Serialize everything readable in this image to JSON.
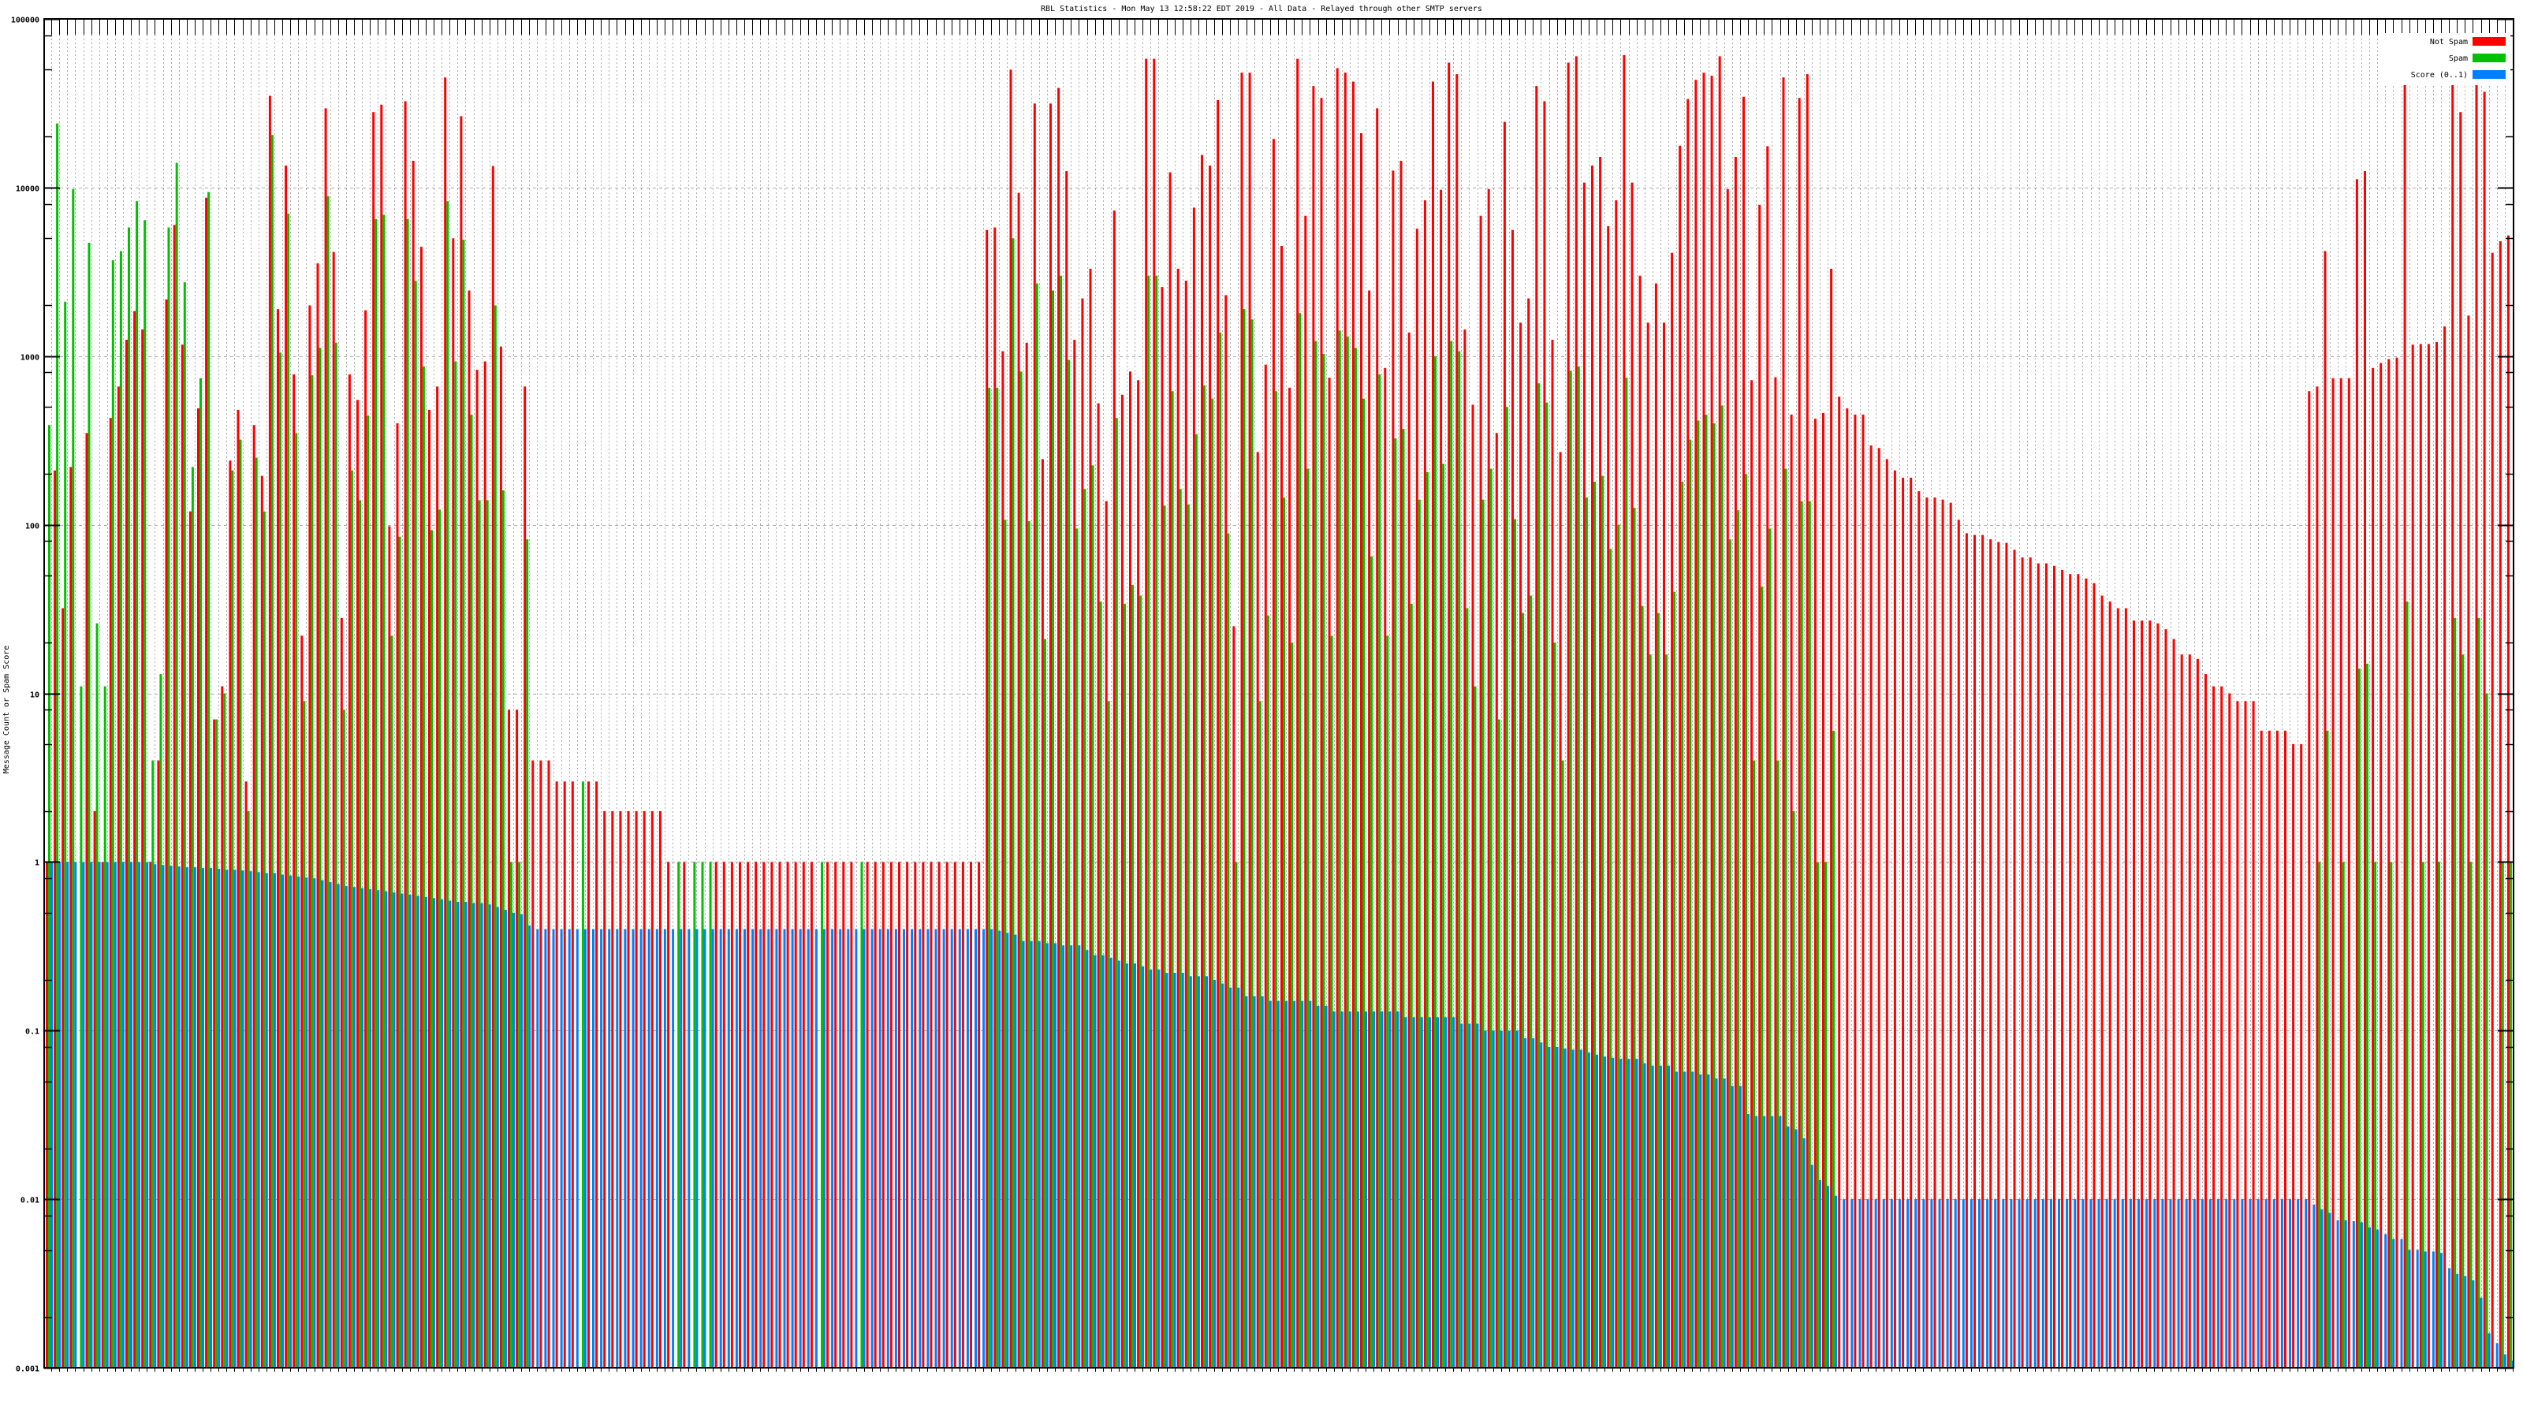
{
  "chart_data": {
    "type": "bar",
    "title": "RBL Statistics - Mon May 13 12:58:22 EDT 2019 - All Data - Relayed through other SMTP servers",
    "xlabel": "",
    "ylabel": "Message Count or Spam Score",
    "yscale": "log",
    "ylim": [
      0.001,
      100000
    ],
    "yticks": [
      "100000",
      "10000",
      "1000",
      "100",
      "10",
      "1",
      "0.1",
      "0.01",
      "0.001"
    ],
    "grid": true,
    "legend_position": "top-right",
    "colors": {
      "not_spam": "#ff0000",
      "spam": "#00c000",
      "score": "#0080ff"
    },
    "series": [
      {
        "name": "Not Spam",
        "key": "not_spam",
        "values": [
          1,
          210,
          32,
          220,
          0,
          350,
          2,
          1,
          430,
          660,
          1250,
          1850,
          1440,
          1,
          4,
          2170,
          6000,
          1170,
          120,
          490,
          8700,
          7,
          11,
          240,
          480,
          3,
          390,
          195,
          35000,
          1900,
          13500,
          780,
          22,
          2000,
          3550,
          29500,
          4150,
          28,
          780,
          550,
          1870,
          28000,
          31000,
          98,
          400,
          32500,
          14400,
          4450,
          480,
          660,
          45000,
          5000,
          26500,
          2450,
          830,
          930,
          13400,
          1140,
          8,
          8,
          660,
          4,
          4,
          4,
          3,
          3,
          3,
          0,
          3,
          3,
          2,
          2,
          2,
          2,
          2,
          2,
          2,
          2,
          1,
          0,
          1,
          0,
          0,
          0,
          1,
          1,
          1,
          1,
          1,
          1,
          1,
          1,
          1,
          1,
          1,
          1,
          1,
          0,
          1,
          1,
          1,
          1,
          0,
          1,
          1,
          1,
          1,
          1,
          1,
          1,
          1,
          1,
          1,
          1,
          1,
          1,
          1,
          1,
          5600,
          5800,
          1070,
          50000,
          9300,
          1200,
          31500,
          245,
          31500,
          39000,
          12500,
          1250,
          2200,
          3300,
          525,
          138,
          7300,
          590,
          810,
          720,
          58000,
          58000,
          2570,
          12300,
          3300,
          2800,
          7600,
          15600,
          13500,
          33000,
          2300,
          25,
          48000,
          48000,
          270,
          890,
          19400,
          4500,
          650,
          58000,
          6800,
          40000,
          34000,
          745,
          51000,
          48000,
          42500,
          21000,
          2450,
          29500,
          850,
          12600,
          14400,
          1380,
          5700,
          8400,
          42500,
          9700,
          55000,
          47000,
          1440,
          515,
          6800,
          9800,
          350,
          24500,
          5600,
          1580,
          2200,
          40000,
          32500,
          1250,
          270,
          55000,
          60000,
          10700,
          13500,
          15200,
          5900,
          8400,
          61000,
          10700,
          3000,
          1580,
          2700,
          1580,
          4100,
          17700,
          33500,
          43500,
          48000,
          46000,
          60000,
          9800,
          15200,
          34500,
          720,
          7900,
          17600,
          750,
          45000,
          450,
          34000,
          47000,
          425,
          460,
          3300,
          575,
          490,
          450,
          450,
          295,
          285,
          245,
          210,
          190,
          190,
          158,
          145,
          145,
          141,
          135,
          107,
          89,
          87,
          87,
          82,
          79,
          78,
          71,
          64,
          64,
          59,
          59,
          57,
          54,
          51,
          51,
          48,
          45,
          38,
          35,
          32,
          32,
          27,
          27,
          27,
          26,
          24,
          21,
          17,
          17,
          16,
          13,
          11,
          11,
          10,
          9,
          9,
          9,
          6,
          6,
          6,
          6,
          5,
          5,
          620,
          660,
          4200,
          740,
          740,
          740,
          11200,
          12500,
          850,
          910,
          960,
          980,
          41000,
          1170,
          1180,
          1180,
          1210,
          1500,
          44000,
          28000,
          1740,
          62000,
          37000,
          4100,
          4800,
          5200
        ]
      },
      {
        "name": "Spam",
        "key": "spam",
        "values": [
          390,
          24000,
          2100,
          9800,
          11,
          4700,
          26,
          11,
          3700,
          4200,
          5800,
          8300,
          6400,
          4,
          13,
          5800,
          14000,
          2740,
          220,
          740,
          9400,
          7,
          10,
          210,
          320,
          2,
          250,
          120,
          20500,
          1050,
          7000,
          350,
          9,
          770,
          1120,
          8900,
          1200,
          8,
          210,
          140,
          445,
          6500,
          6900,
          22,
          85,
          6500,
          2800,
          870,
          93,
          123,
          8300,
          930,
          4900,
          450,
          140,
          140,
          2000,
          160,
          1,
          1,
          82,
          0,
          0,
          0,
          0,
          0,
          0,
          3,
          0,
          0,
          0,
          0,
          0,
          0,
          0,
          0,
          0,
          0,
          0,
          1,
          0,
          1,
          1,
          1,
          0,
          0,
          0,
          0,
          0,
          0,
          0,
          0,
          0,
          0,
          0,
          0,
          0,
          1,
          0,
          0,
          0,
          0,
          1,
          0,
          0,
          0,
          0,
          0,
          0,
          0,
          0,
          0,
          0,
          0,
          0,
          0,
          0,
          0,
          650,
          650,
          107,
          5000,
          810,
          105,
          2700,
          21,
          2450,
          3000,
          950,
          95,
          163,
          225,
          35,
          9,
          430,
          34,
          44,
          38,
          3000,
          3000,
          130,
          620,
          163,
          132,
          345,
          670,
          560,
          1380,
          89,
          1,
          1900,
          1650,
          9,
          29,
          620,
          145,
          20,
          1800,
          215,
          1230,
          1030,
          22,
          1420,
          1310,
          1120,
          560,
          65,
          780,
          22,
          325,
          370,
          34,
          141,
          205,
          1000,
          230,
          1230,
          1070,
          32,
          11,
          141,
          215,
          7,
          500,
          108,
          30,
          38,
          690,
          530,
          20,
          4,
          820,
          870,
          145,
          180,
          195,
          72,
          100,
          745,
          126,
          33,
          17,
          30,
          17,
          40,
          180,
          320,
          415,
          450,
          400,
          510,
          82,
          122,
          200,
          4,
          43,
          95,
          4,
          215,
          2,
          138,
          138,
          1,
          1,
          6,
          0,
          0,
          0,
          0,
          0,
          0,
          0,
          0,
          0,
          0,
          0,
          0,
          0,
          0,
          0,
          0,
          0,
          0,
          0,
          0,
          0,
          0,
          0,
          0,
          0,
          0,
          0,
          0,
          0,
          0,
          0,
          0,
          0,
          0,
          0,
          0,
          0,
          0,
          0,
          0,
          0,
          0,
          0,
          0,
          0,
          0,
          0,
          0,
          0,
          0,
          0,
          0,
          0,
          0,
          0,
          0,
          0,
          0,
          0,
          0,
          1,
          6,
          0,
          1,
          0,
          14,
          15,
          1,
          0,
          1,
          0,
          35,
          0,
          1,
          0,
          1,
          0,
          28,
          17,
          1,
          28,
          10,
          0,
          1,
          1
        ]
      },
      {
        "name": "Score (0..1)",
        "key": "score",
        "values": [
          1,
          1,
          1,
          1,
          1,
          1,
          1,
          1,
          1,
          1,
          1,
          1,
          1,
          0.97,
          0.96,
          0.95,
          0.94,
          0.93,
          0.93,
          0.92,
          0.92,
          0.91,
          0.9,
          0.9,
          0.89,
          0.88,
          0.87,
          0.86,
          0.86,
          0.84,
          0.83,
          0.82,
          0.81,
          0.8,
          0.78,
          0.76,
          0.74,
          0.72,
          0.71,
          0.7,
          0.69,
          0.68,
          0.67,
          0.66,
          0.65,
          0.64,
          0.63,
          0.62,
          0.61,
          0.6,
          0.59,
          0.58,
          0.58,
          0.57,
          0.57,
          0.56,
          0.54,
          0.52,
          0.5,
          0.49,
          0.42,
          0.4,
          0.4,
          0.4,
          0.4,
          0.4,
          0.4,
          0.4,
          0.4,
          0.4,
          0.4,
          0.4,
          0.4,
          0.4,
          0.4,
          0.4,
          0.4,
          0.4,
          0.4,
          0.4,
          0.4,
          0.4,
          0.4,
          0.4,
          0.4,
          0.4,
          0.4,
          0.4,
          0.4,
          0.4,
          0.4,
          0.4,
          0.4,
          0.4,
          0.4,
          0.4,
          0.4,
          0.4,
          0.4,
          0.4,
          0.4,
          0.4,
          0.4,
          0.4,
          0.4,
          0.4,
          0.4,
          0.4,
          0.4,
          0.4,
          0.4,
          0.4,
          0.4,
          0.4,
          0.4,
          0.4,
          0.4,
          0.4,
          0.4,
          0.39,
          0.38,
          0.37,
          0.34,
          0.34,
          0.34,
          0.33,
          0.33,
          0.32,
          0.32,
          0.32,
          0.3,
          0.28,
          0.28,
          0.27,
          0.26,
          0.25,
          0.25,
          0.24,
          0.23,
          0.23,
          0.22,
          0.22,
          0.22,
          0.21,
          0.21,
          0.21,
          0.2,
          0.19,
          0.18,
          0.18,
          0.16,
          0.16,
          0.16,
          0.15,
          0.15,
          0.15,
          0.15,
          0.15,
          0.15,
          0.14,
          0.14,
          0.13,
          0.13,
          0.13,
          0.13,
          0.13,
          0.13,
          0.13,
          0.13,
          0.13,
          0.12,
          0.12,
          0.12,
          0.12,
          0.12,
          0.12,
          0.12,
          0.11,
          0.11,
          0.11,
          0.1,
          0.1,
          0.1,
          0.1,
          0.1,
          0.09,
          0.09,
          0.085,
          0.08,
          0.08,
          0.078,
          0.077,
          0.077,
          0.074,
          0.072,
          0.07,
          0.069,
          0.068,
          0.068,
          0.068,
          0.064,
          0.062,
          0.062,
          0.062,
          0.057,
          0.057,
          0.057,
          0.055,
          0.055,
          0.052,
          0.052,
          0.047,
          0.047,
          0.032,
          0.031,
          0.031,
          0.031,
          0.031,
          0.027,
          0.026,
          0.023,
          0.016,
          0.013,
          0.012,
          0.0105,
          0.01,
          0.01,
          0.01,
          0.01,
          0.01,
          0.01,
          0.01,
          0.01,
          0.01,
          0.01,
          0.01,
          0.01,
          0.01,
          0.01,
          0.01,
          0.01,
          0.01,
          0.01,
          0.01,
          0.01,
          0.01,
          0.01,
          0.01,
          0.01,
          0.01,
          0.01,
          0.01,
          0.01,
          0.01,
          0.01,
          0.01,
          0.01,
          0.01,
          0.01,
          0.01,
          0.01,
          0.01,
          0.01,
          0.01,
          0.01,
          0.01,
          0.01,
          0.01,
          0.01,
          0.01,
          0.01,
          0.01,
          0.01,
          0.01,
          0.01,
          0.01,
          0.01,
          0.01,
          0.01,
          0.01,
          0.01,
          0.01,
          0.01,
          0.01,
          0.0093,
          0.0087,
          0.0083,
          0.0075,
          0.0075,
          0.0074,
          0.0073,
          0.0068,
          0.0066,
          0.0062,
          0.0058,
          0.0058,
          0.005,
          0.005,
          0.0049,
          0.0049,
          0.0048,
          0.0039,
          0.0036,
          0.0035,
          0.0033,
          0.0026,
          0.0016,
          0.0014,
          0.0012,
          0.0011
        ]
      }
    ]
  }
}
